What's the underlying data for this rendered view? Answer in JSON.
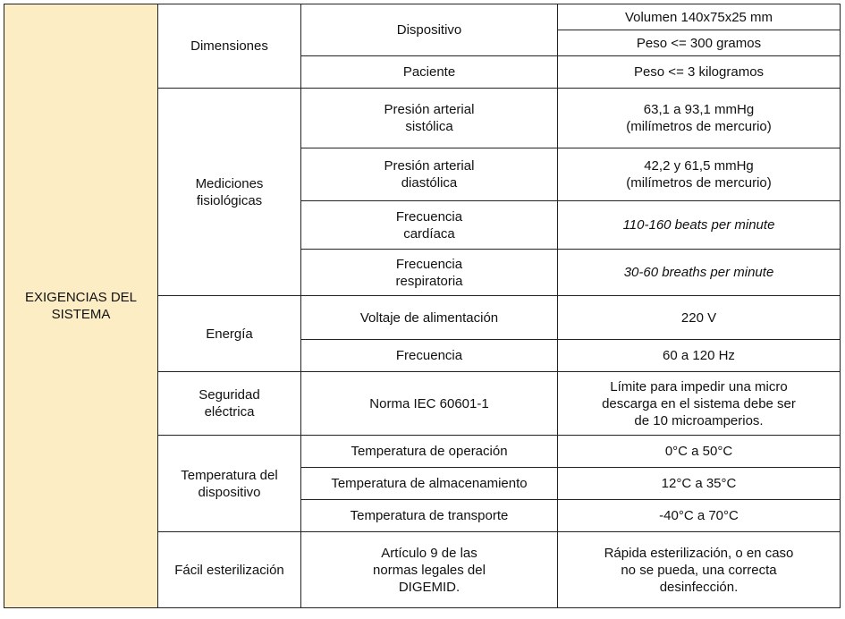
{
  "system": "EXIGENCIAS DEL\nSISTEMA",
  "dimensiones": {
    "label": "Dimensiones",
    "dispositivo": "Dispositivo",
    "volumen": "Volumen 140x75x25 mm",
    "peso_dispositivo": "Peso <= 300 gramos",
    "paciente": "Paciente",
    "peso_paciente": "Peso <= 3 kilogramos"
  },
  "mediciones": {
    "label": "Mediciones\nfisiológicas",
    "sistolica": {
      "param": "Presión arterial\nsistólica",
      "value": "63,1 a 93,1 mmHg\n(milímetros de mercurio)"
    },
    "diastolica": {
      "param": "Presión arterial\ndiastólica",
      "value": "42,2 y 61,5 mmHg\n(milímetros de mercurio)"
    },
    "cardiaca": {
      "param": "Frecuencia\ncardíaca",
      "value": "110-160 beats per minute"
    },
    "respiratoria": {
      "param": "Frecuencia\nrespiratoria",
      "value": "30-60 breaths per minute"
    }
  },
  "energia": {
    "label": "Energía",
    "voltaje": {
      "param": "Voltaje de alimentación",
      "value": "220 V"
    },
    "frecuencia": {
      "param": "Frecuencia",
      "value": "60 a 120 Hz"
    }
  },
  "seguridad": {
    "label": "Seguridad\neléctrica",
    "param": "Norma IEC 60601-1",
    "value": "Límite para impedir una micro\ndescarga en el sistema debe ser\nde 10 microamperios."
  },
  "temperatura": {
    "label": "Temperatura del\ndispositivo",
    "operacion": {
      "param": "Temperatura de operación",
      "value": "0°C a 50°C"
    },
    "almacenamiento": {
      "param": "Temperatura de almacenamiento",
      "value": "12°C a 35°C"
    },
    "transporte": {
      "param": "Temperatura de transporte",
      "value": "-40°C a 70°C"
    }
  },
  "esterilizacion": {
    "label": "Fácil esterilización",
    "param": "Artículo 9 de las\nnormas legales del\nDIGEMID.",
    "value": "Rápida esterilización, o en caso\nno se pueda, una correcta\ndesinfección."
  }
}
